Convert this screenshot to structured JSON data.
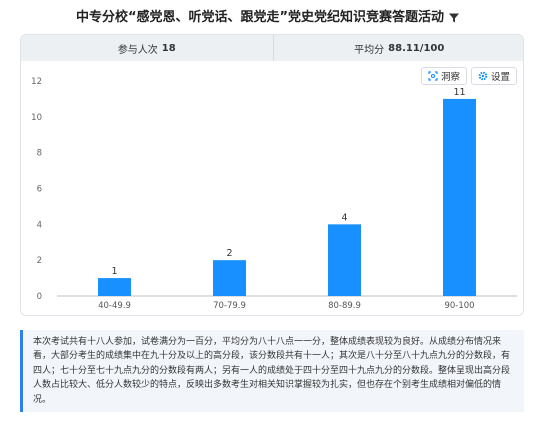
{
  "page": {
    "title": "中专分校“感党恩、听党话、跟党走”党史党纪知识竞赛答题活动"
  },
  "stats": {
    "participants_label": "参与人次",
    "participants_value": "18",
    "average_label": "平均分",
    "average_value": "88.11/100"
  },
  "toolbar": {
    "insight_label": "洞察",
    "settings_label": "设置"
  },
  "colors": {
    "bar": "#1890ff",
    "axis": "#bfbfbf",
    "summary_accent": "#2f80ed"
  },
  "chart_data": {
    "type": "bar",
    "categories": [
      "40-49.9",
      "70-79.9",
      "80-89.9",
      "90-100"
    ],
    "values": [
      1,
      2,
      4,
      11
    ],
    "ylim": [
      0,
      12
    ],
    "yticks": [
      0,
      2,
      4,
      6,
      8,
      10,
      12
    ],
    "grid": false,
    "data_labels": true
  },
  "summary": {
    "text": "本次考试共有十八人参加，试卷满分为一百分，平均分为八十八点一一分，整体成绩表现较为良好。从成绩分布情况来看，大部分考生的成绩集中在九十分及以上的高分段，该分数段共有十一人；其次是八十分至八十九点九分的分数段，有四人；七十分至七十九点九分的分数段有两人；另有一人的成绩处于四十分至四十九点九分的分数段。整体呈现出高分段人数占比较大、低分人数较少的特点，反映出多数考生对相关知识掌握较为扎实，但也存在个别考生成绩相对偏低的情况。"
  }
}
